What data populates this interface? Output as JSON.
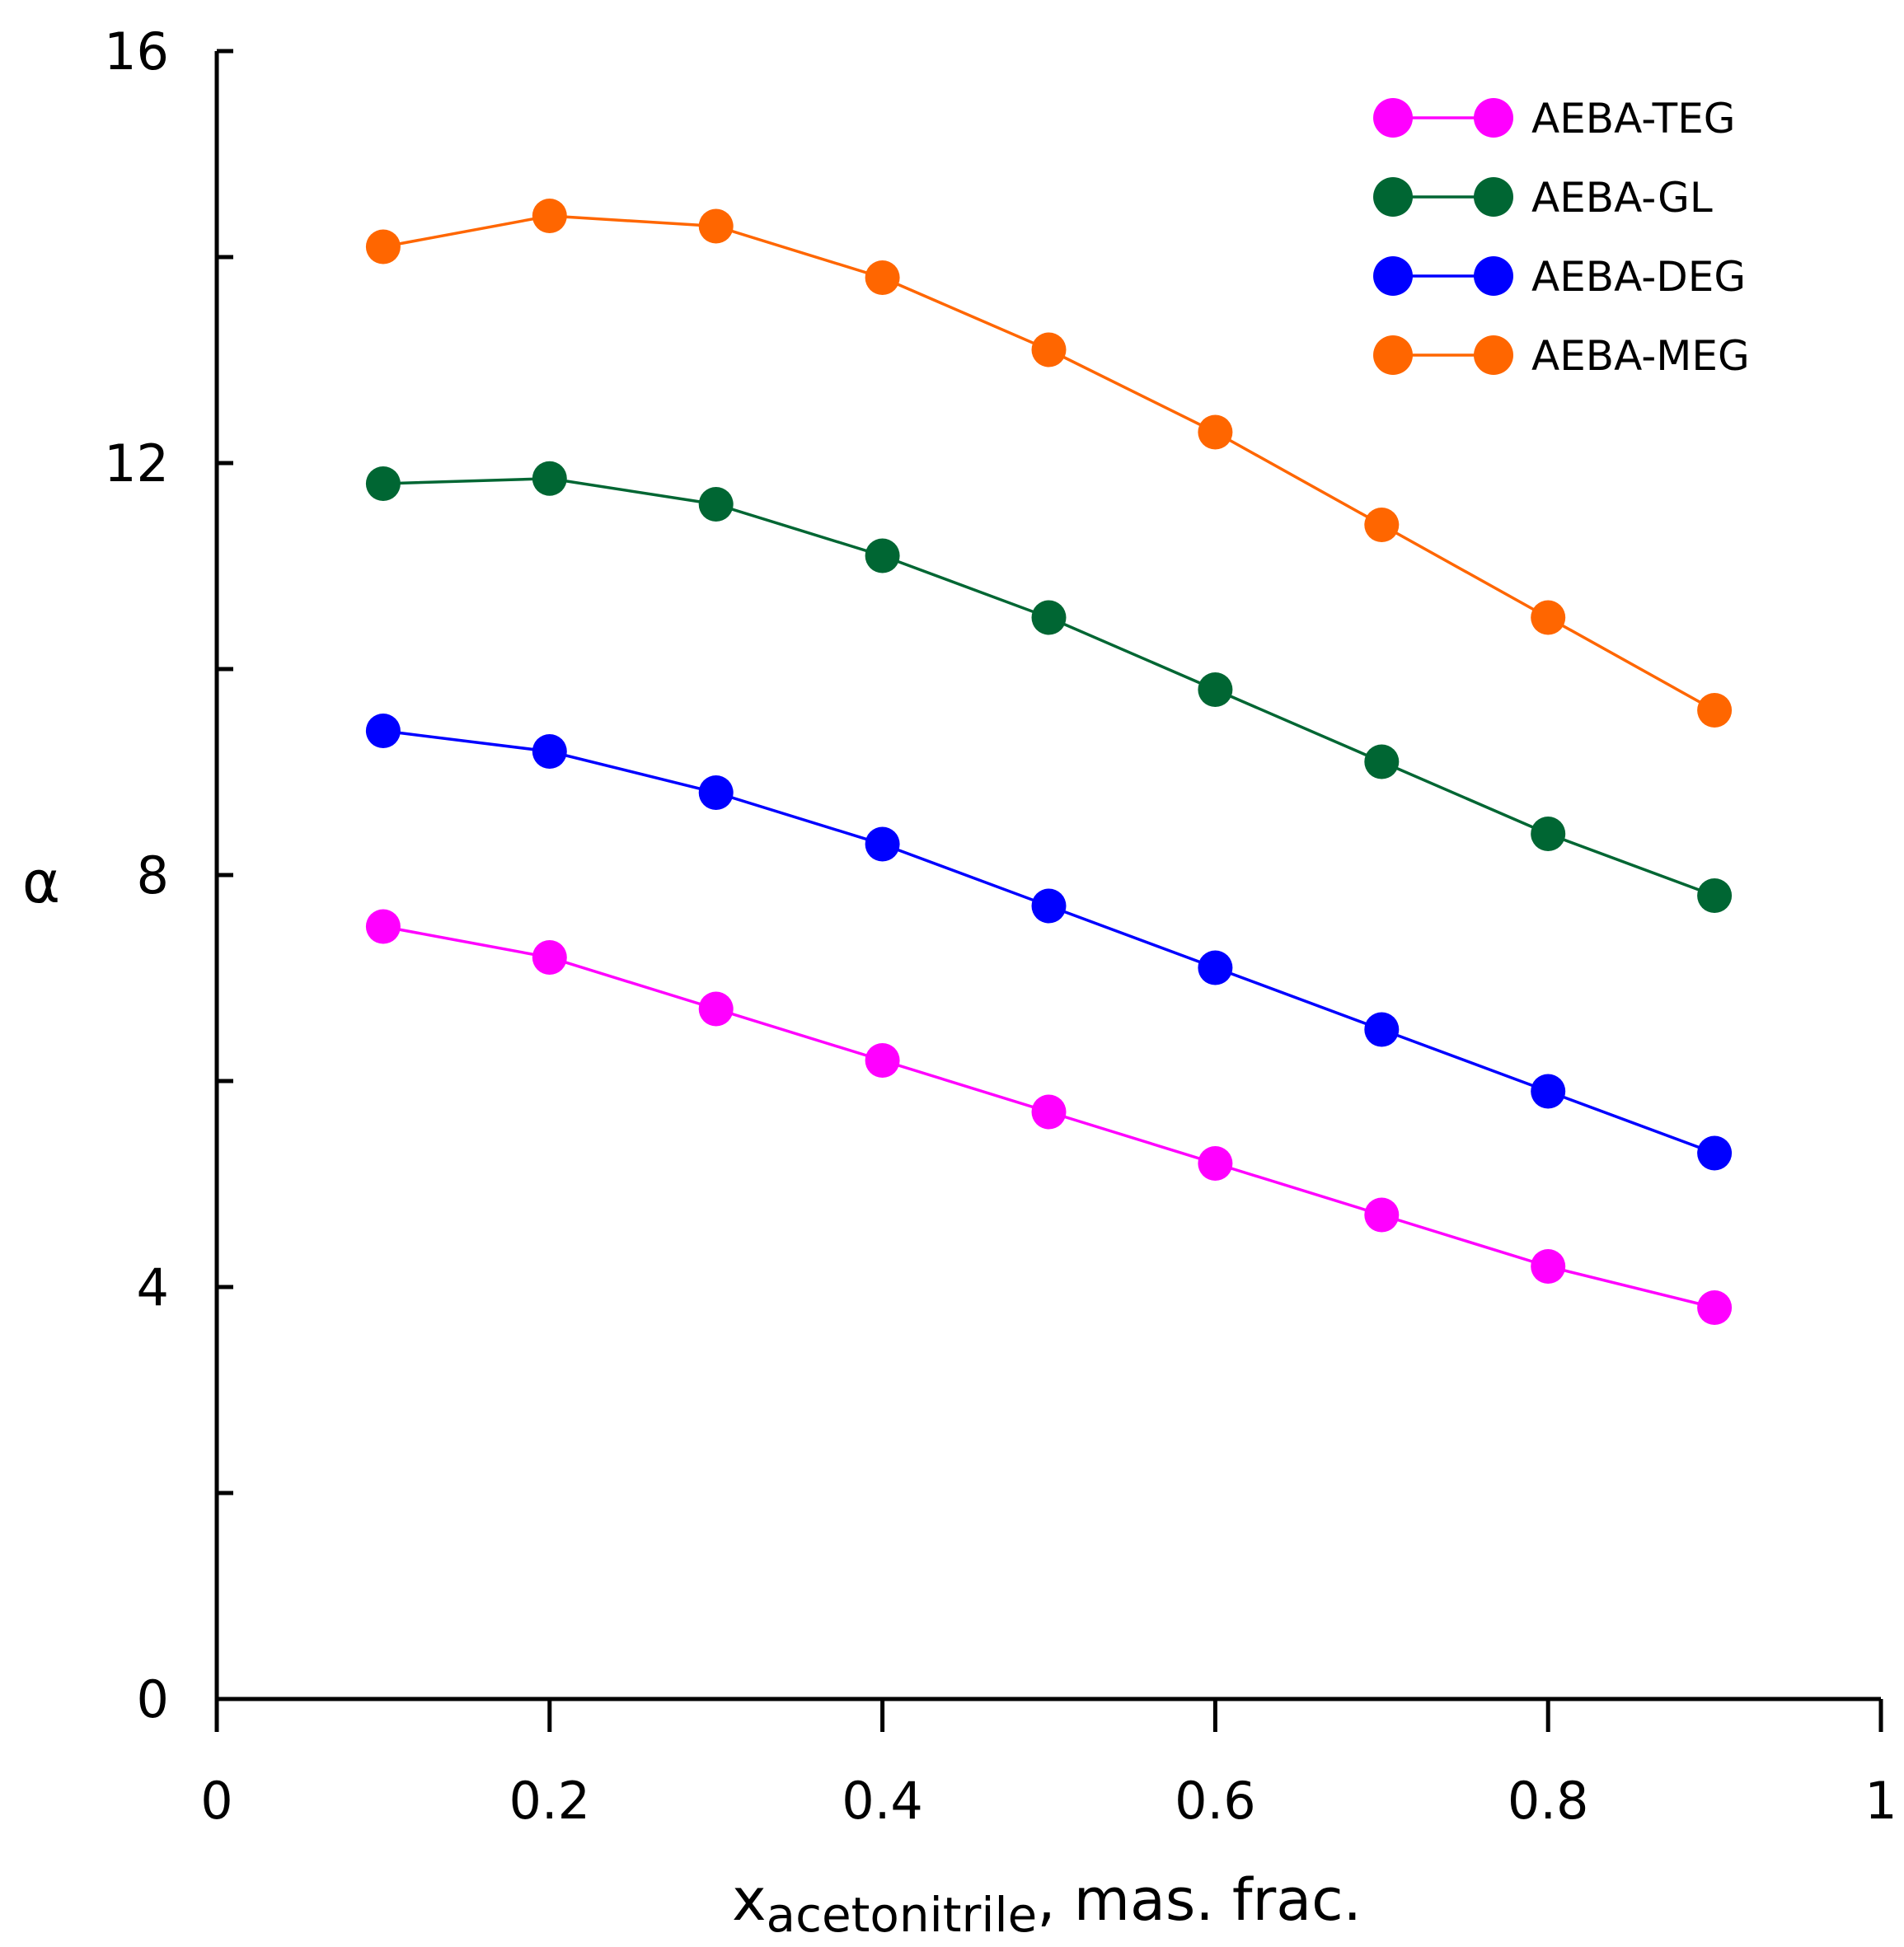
{
  "chart_data": {
    "type": "line",
    "title": "",
    "xlabel_main": "x",
    "xlabel_sub": "acetonitrile",
    "xlabel_rest": ", mas. frac.",
    "ylabel": "α",
    "xlim": [
      0,
      1
    ],
    "ylim": [
      0,
      16
    ],
    "x_ticks": [
      0,
      0.2,
      0.4,
      0.6,
      0.8,
      1
    ],
    "x_tick_labels": [
      "0",
      "0.2",
      "0.4",
      "0.6",
      "0.8",
      "1"
    ],
    "x_minor_ticks": [
      0.1,
      0.3,
      0.5,
      0.7,
      0.9
    ],
    "y_ticks": [
      0,
      2,
      4,
      6,
      8,
      10,
      12,
      14,
      16
    ],
    "y_tick_labels": [
      "0",
      "",
      "4",
      "",
      "8",
      "",
      "12",
      "",
      "16"
    ],
    "grid": false,
    "legend_position": "top-right",
    "x": [
      0.1,
      0.2,
      0.3,
      0.4,
      0.5,
      0.6,
      0.7,
      0.8,
      0.9
    ],
    "series": [
      {
        "name": "AEBA-TEG",
        "color": "#ff00ff",
        "values": [
          7.5,
          7.2,
          6.7,
          6.2,
          5.7,
          5.2,
          4.7,
          4.2,
          3.8
        ]
      },
      {
        "name": "AEBA-GL",
        "color": "#006633",
        "values": [
          11.8,
          11.85,
          11.6,
          11.1,
          10.5,
          9.8,
          9.1,
          8.4,
          7.8
        ]
      },
      {
        "name": "AEBA-DEG",
        "color": "#0000ff",
        "values": [
          9.4,
          9.2,
          8.8,
          8.3,
          7.7,
          7.1,
          6.5,
          5.9,
          5.3
        ]
      },
      {
        "name": "AEBA-MEG",
        "color": "#ff6600",
        "values": [
          14.1,
          14.4,
          14.3,
          13.8,
          13.1,
          12.3,
          11.4,
          10.5,
          9.6
        ]
      }
    ]
  }
}
